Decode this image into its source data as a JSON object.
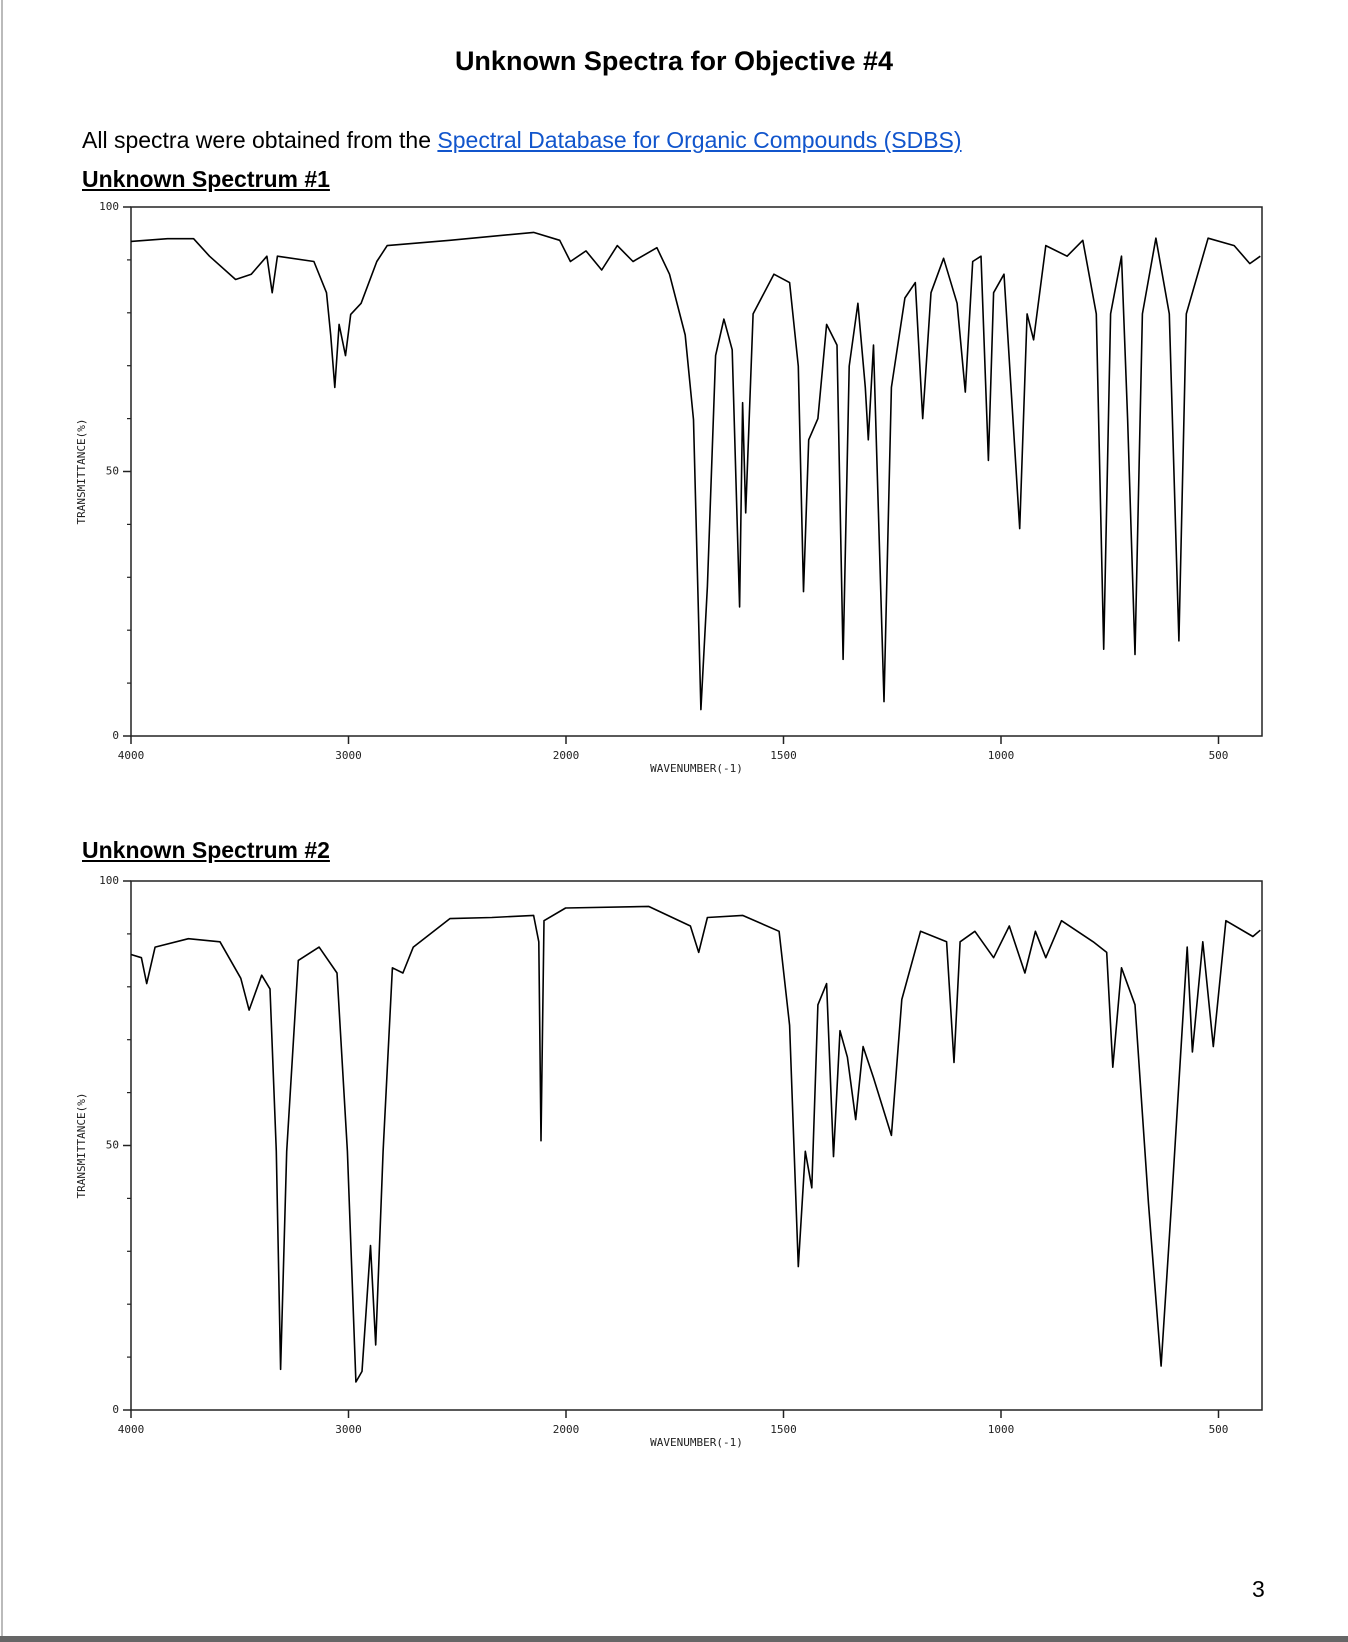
{
  "document": {
    "title": "Unknown Spectra for Objective #4",
    "intro": "All spectra were obtained from the",
    "link": "Spectral Database for Organic Compounds (SDBS)",
    "page_number": 3
  },
  "chart_data": [
    {
      "type": "line",
      "title": "Unknown Spectrum #1",
      "xlabel": "WAVENUMBER(-1)",
      "ylabel": "TRANSMITTANCE(%)",
      "xlim": [
        4000,
        400
      ],
      "x_scale_break": 2000,
      "xticks": [
        4000,
        3000,
        2000,
        1500,
        1000,
        500
      ],
      "ylim": [
        0,
        100
      ],
      "yticks": [
        0,
        50,
        100
      ],
      "minor_yticks": [
        10,
        20,
        30,
        40,
        60,
        70,
        80,
        90
      ],
      "color": "#000000",
      "x": [
        4000,
        3832,
        3712,
        3639,
        3519,
        3447,
        3375,
        3351,
        3327,
        3159,
        3101,
        3082,
        3063,
        3043,
        3014,
        2990,
        2942,
        2870,
        2822,
        2534,
        2149,
        2029,
        1990,
        1954,
        1918,
        1882,
        1846,
        1791,
        1762,
        1726,
        1707,
        1690,
        1675,
        1656,
        1637,
        1618,
        1601,
        1594,
        1587,
        1570,
        1522,
        1486,
        1466,
        1454,
        1442,
        1421,
        1401,
        1377,
        1363,
        1349,
        1329,
        1312,
        1305,
        1293,
        1269,
        1252,
        1221,
        1197,
        1180,
        1161,
        1132,
        1101,
        1082,
        1065,
        1046,
        1029,
        1017,
        993,
        957,
        940,
        925,
        897,
        848,
        812,
        781,
        764,
        748,
        723,
        709,
        692,
        675,
        644,
        613,
        591,
        574,
        524,
        464,
        428,
        404
      ],
      "values": [
        93.5,
        94,
        94,
        90.7,
        86.3,
        87.3,
        90.7,
        83.8,
        90.7,
        89.7,
        83.8,
        75.8,
        65.9,
        77.8,
        71.9,
        79.7,
        81.8,
        89.7,
        92.7,
        93.7,
        95.2,
        93.7,
        89.7,
        91.7,
        88.1,
        92.7,
        89.7,
        92.3,
        87.3,
        75.8,
        59.8,
        5,
        28.3,
        71.9,
        78.8,
        73,
        24.4,
        63,
        42.2,
        79.8,
        87.3,
        85.7,
        69.9,
        27.3,
        56,
        60,
        77.8,
        73.9,
        14.5,
        69.9,
        81.8,
        65.9,
        56,
        73.9,
        6.5,
        65.9,
        82.8,
        85.7,
        60,
        83.8,
        90.3,
        81.8,
        65,
        89.7,
        90.7,
        52.1,
        83.8,
        87.3,
        39.2,
        79.8,
        74.9,
        92.7,
        90.7,
        93.7,
        79.8,
        16.4,
        79.8,
        90.7,
        60,
        15.4,
        79.8,
        94.1,
        79.8,
        18,
        79.8,
        94.1,
        92.7,
        89.3,
        90.7
      ]
    },
    {
      "type": "line",
      "title": "Unknown Spectrum #2",
      "xlabel": "WAVENUMBER(-1)",
      "ylabel": "TRANSMITTANCE(%)",
      "xlim": [
        4000,
        400
      ],
      "x_scale_break": 2000,
      "xticks": [
        4000,
        3000,
        2000,
        1500,
        1000,
        500
      ],
      "ylim": [
        0,
        100
      ],
      "yticks": [
        0,
        50,
        100
      ],
      "minor_yticks": [
        10,
        20,
        30,
        40,
        60,
        70,
        80,
        90
      ],
      "color": "#000000",
      "x": [
        4000,
        3952,
        3928,
        3889,
        3736,
        3591,
        3495,
        3457,
        3399,
        3361,
        3332,
        3312,
        3284,
        3231,
        3135,
        3053,
        3005,
        2966,
        2938,
        2918,
        2899,
        2875,
        2841,
        2798,
        2750,
        2702,
        2534,
        2341,
        2149,
        2125,
        2115,
        2101,
        2002,
        1810,
        1714,
        1695,
        1675,
        1594,
        1510,
        1486,
        1466,
        1450,
        1435,
        1421,
        1401,
        1385,
        1370,
        1353,
        1334,
        1317,
        1293,
        1252,
        1228,
        1185,
        1125,
        1108,
        1094,
        1060,
        1017,
        981,
        945,
        921,
        897,
        861,
        788,
        757,
        743,
        723,
        692,
        661,
        632,
        608,
        572,
        560,
        536,
        512,
        483,
        421,
        404
      ],
      "values": [
        86.1,
        85.5,
        80.6,
        87.5,
        89.1,
        88.5,
        81.6,
        75.6,
        82.2,
        79.6,
        48.9,
        7.7,
        48.9,
        85,
        87.5,
        82.6,
        48.9,
        5.3,
        7.3,
        19.2,
        31.1,
        12.3,
        48.9,
        83.6,
        82.6,
        87.5,
        92.9,
        93.1,
        93.5,
        88.5,
        50.9,
        92.5,
        94.9,
        95.2,
        91.5,
        86.5,
        93.1,
        93.5,
        90.5,
        72.7,
        27.1,
        48.9,
        42,
        76.6,
        80.6,
        47.9,
        71.7,
        66.7,
        54.9,
        68.7,
        62.8,
        51.9,
        77.6,
        90.5,
        88.5,
        65.7,
        88.5,
        90.5,
        85.5,
        91.5,
        82.6,
        90.5,
        85.5,
        92.5,
        88.5,
        86.5,
        64.8,
        83.6,
        76.6,
        39,
        8.3,
        39,
        87.5,
        67.7,
        88.5,
        68.7,
        92.5,
        89.5,
        90.7
      ]
    }
  ]
}
